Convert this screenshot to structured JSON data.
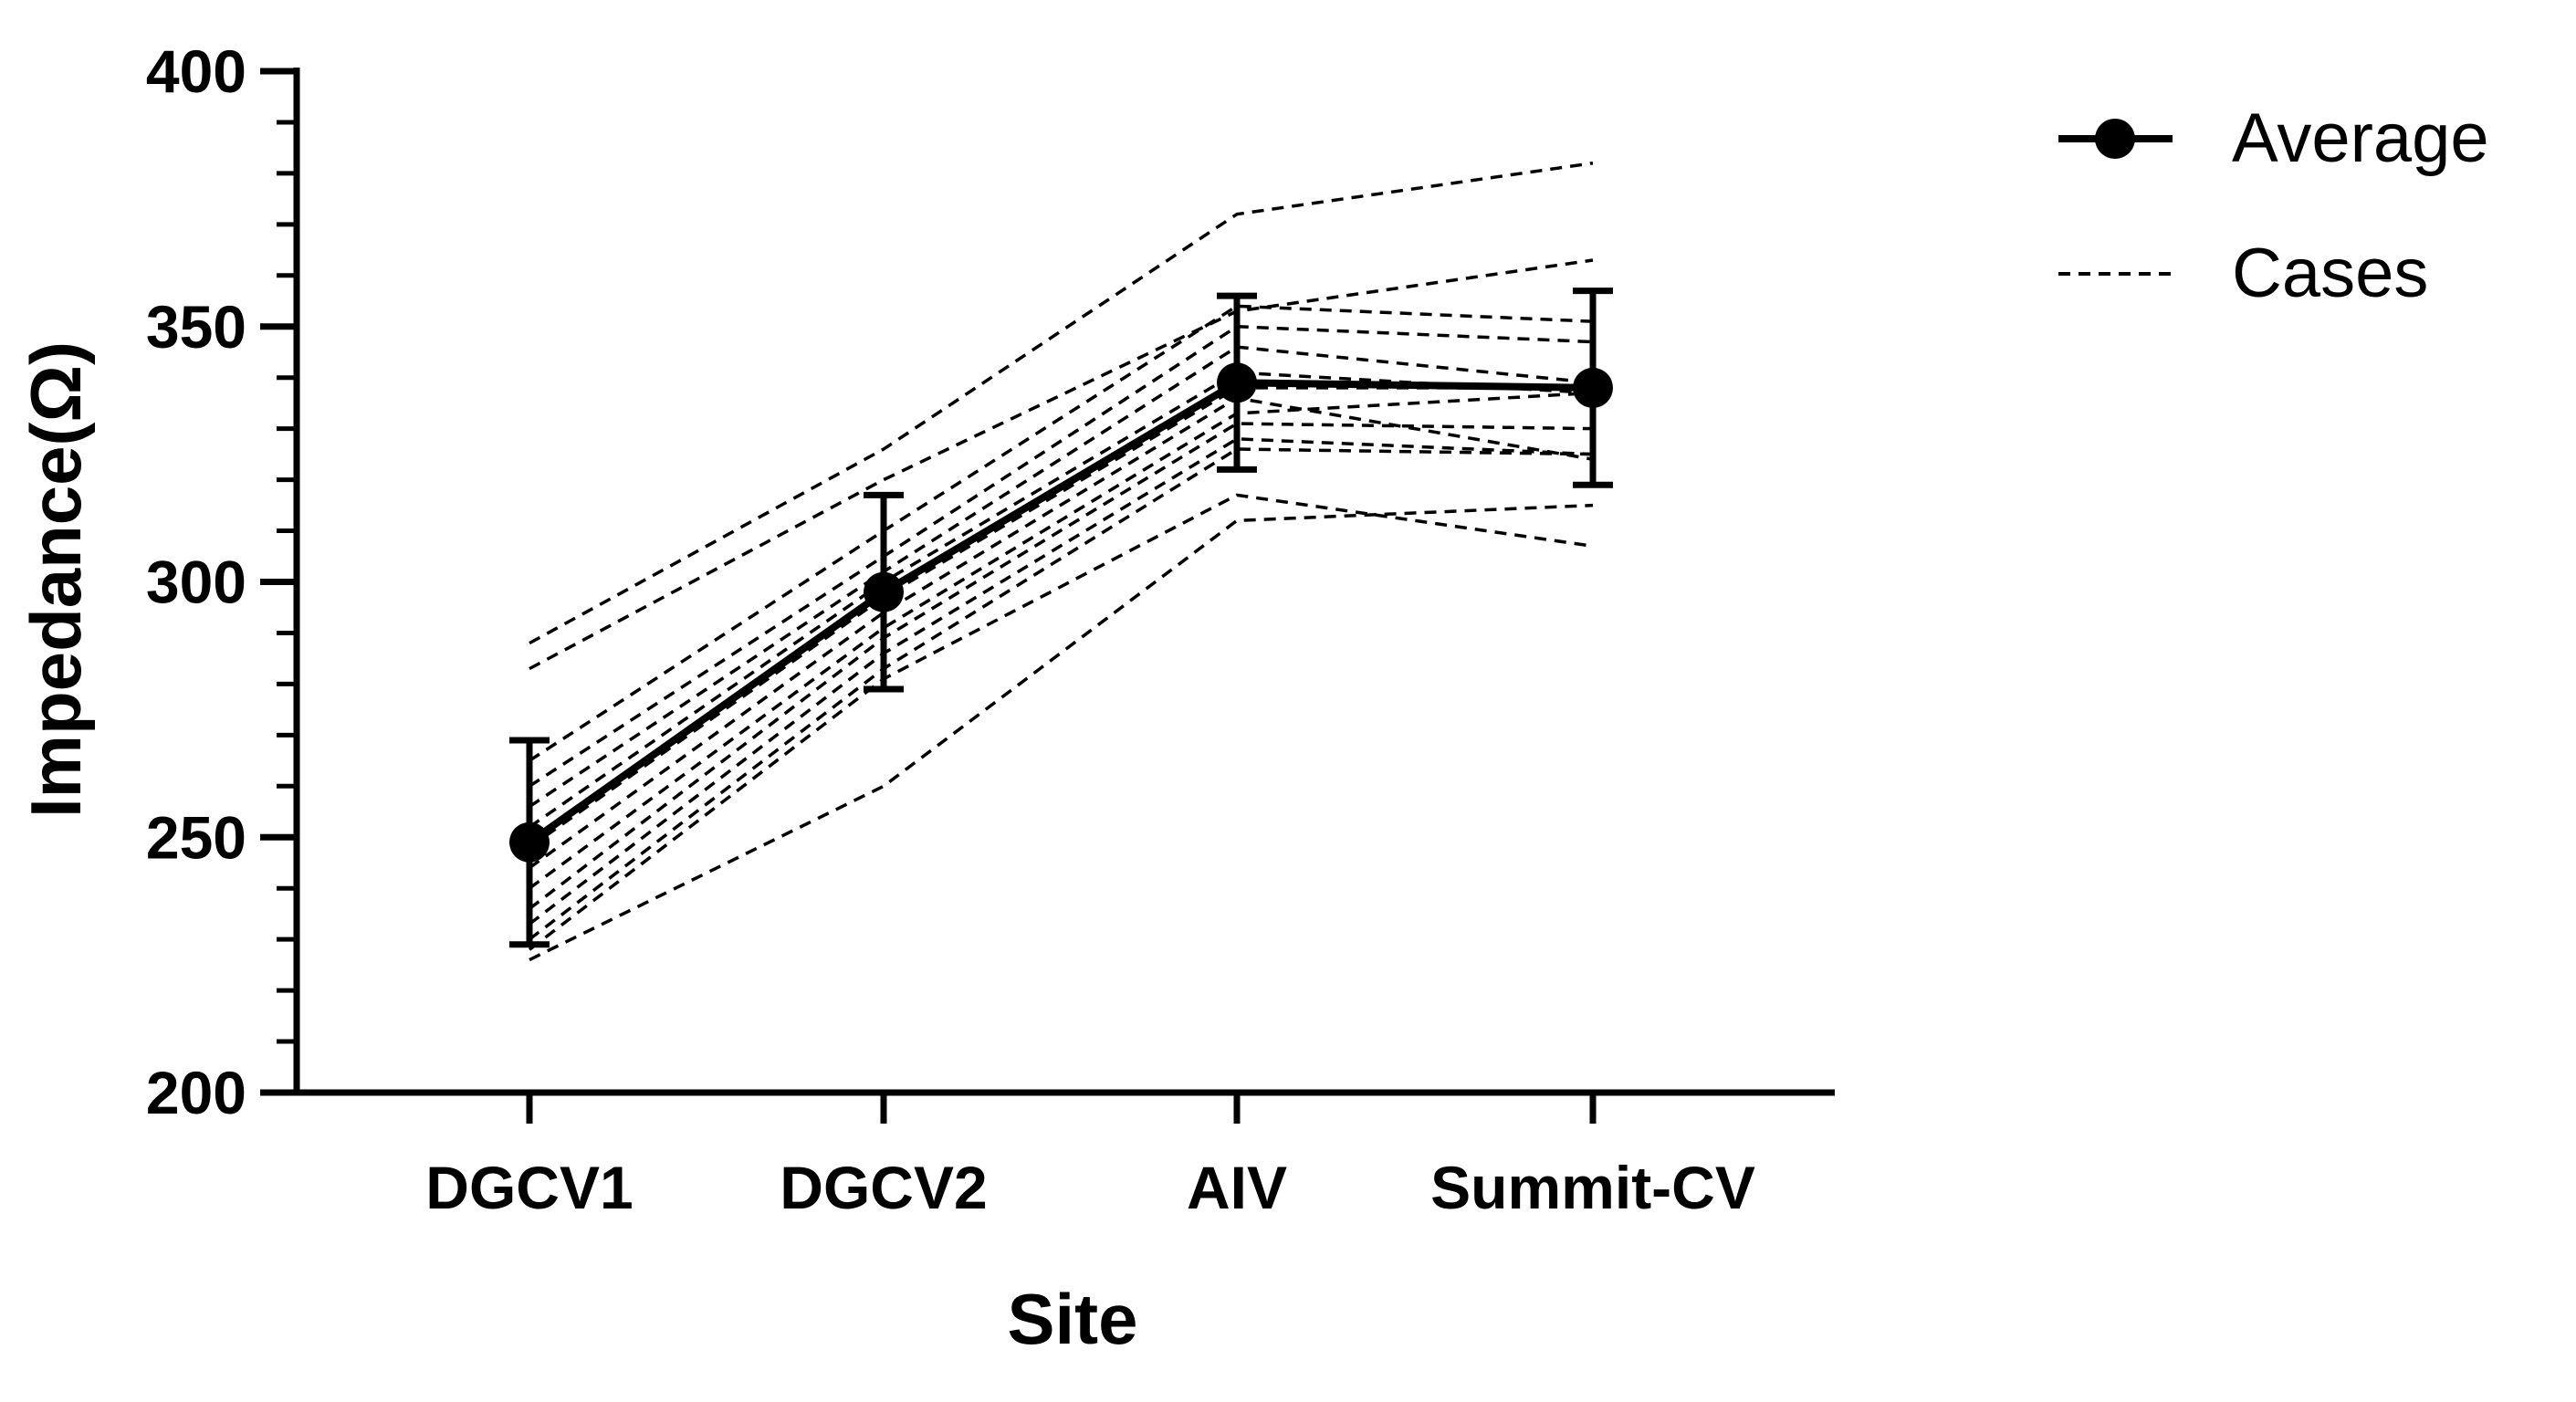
{
  "chart_data": {
    "type": "line",
    "title": "",
    "xlabel": "Site",
    "ylabel": "Impedance(Ω)",
    "categories": [
      "DGCV1",
      "DGCV2",
      "AIV",
      "Summit-CV"
    ],
    "ylim": [
      200,
      400
    ],
    "yticks": [
      200,
      250,
      300,
      350,
      400
    ],
    "y_minor_step": 10,
    "grid": false,
    "legend": {
      "position": "top-right",
      "entries": [
        {
          "label": "Average",
          "style": "solid-line-with-marker"
        },
        {
          "label": "Cases",
          "style": "dashed-line"
        }
      ]
    },
    "series": [
      {
        "name": "Average",
        "values": [
          249,
          298,
          339,
          338
        ],
        "error": [
          20,
          19,
          17,
          19
        ],
        "color": "#000000",
        "style": "solid",
        "marker": "circle"
      },
      {
        "name": "Cases",
        "color": "#000000",
        "style": "dashed",
        "cases": [
          [
            288,
            326,
            372,
            382
          ],
          [
            283,
            320,
            353,
            363
          ],
          [
            265,
            310,
            354,
            351
          ],
          [
            260,
            305,
            350,
            347
          ],
          [
            256,
            302,
            346,
            339
          ],
          [
            252,
            300,
            341,
            337
          ],
          [
            248,
            297,
            338,
            338
          ],
          [
            244,
            294,
            336,
            324
          ],
          [
            240,
            291,
            333,
            337
          ],
          [
            236,
            289,
            331,
            330
          ],
          [
            233,
            286,
            328,
            325
          ],
          [
            230,
            283,
            326,
            325
          ],
          [
            228,
            281,
            317,
            307
          ],
          [
            226,
            260,
            312,
            315
          ]
        ]
      }
    ]
  }
}
